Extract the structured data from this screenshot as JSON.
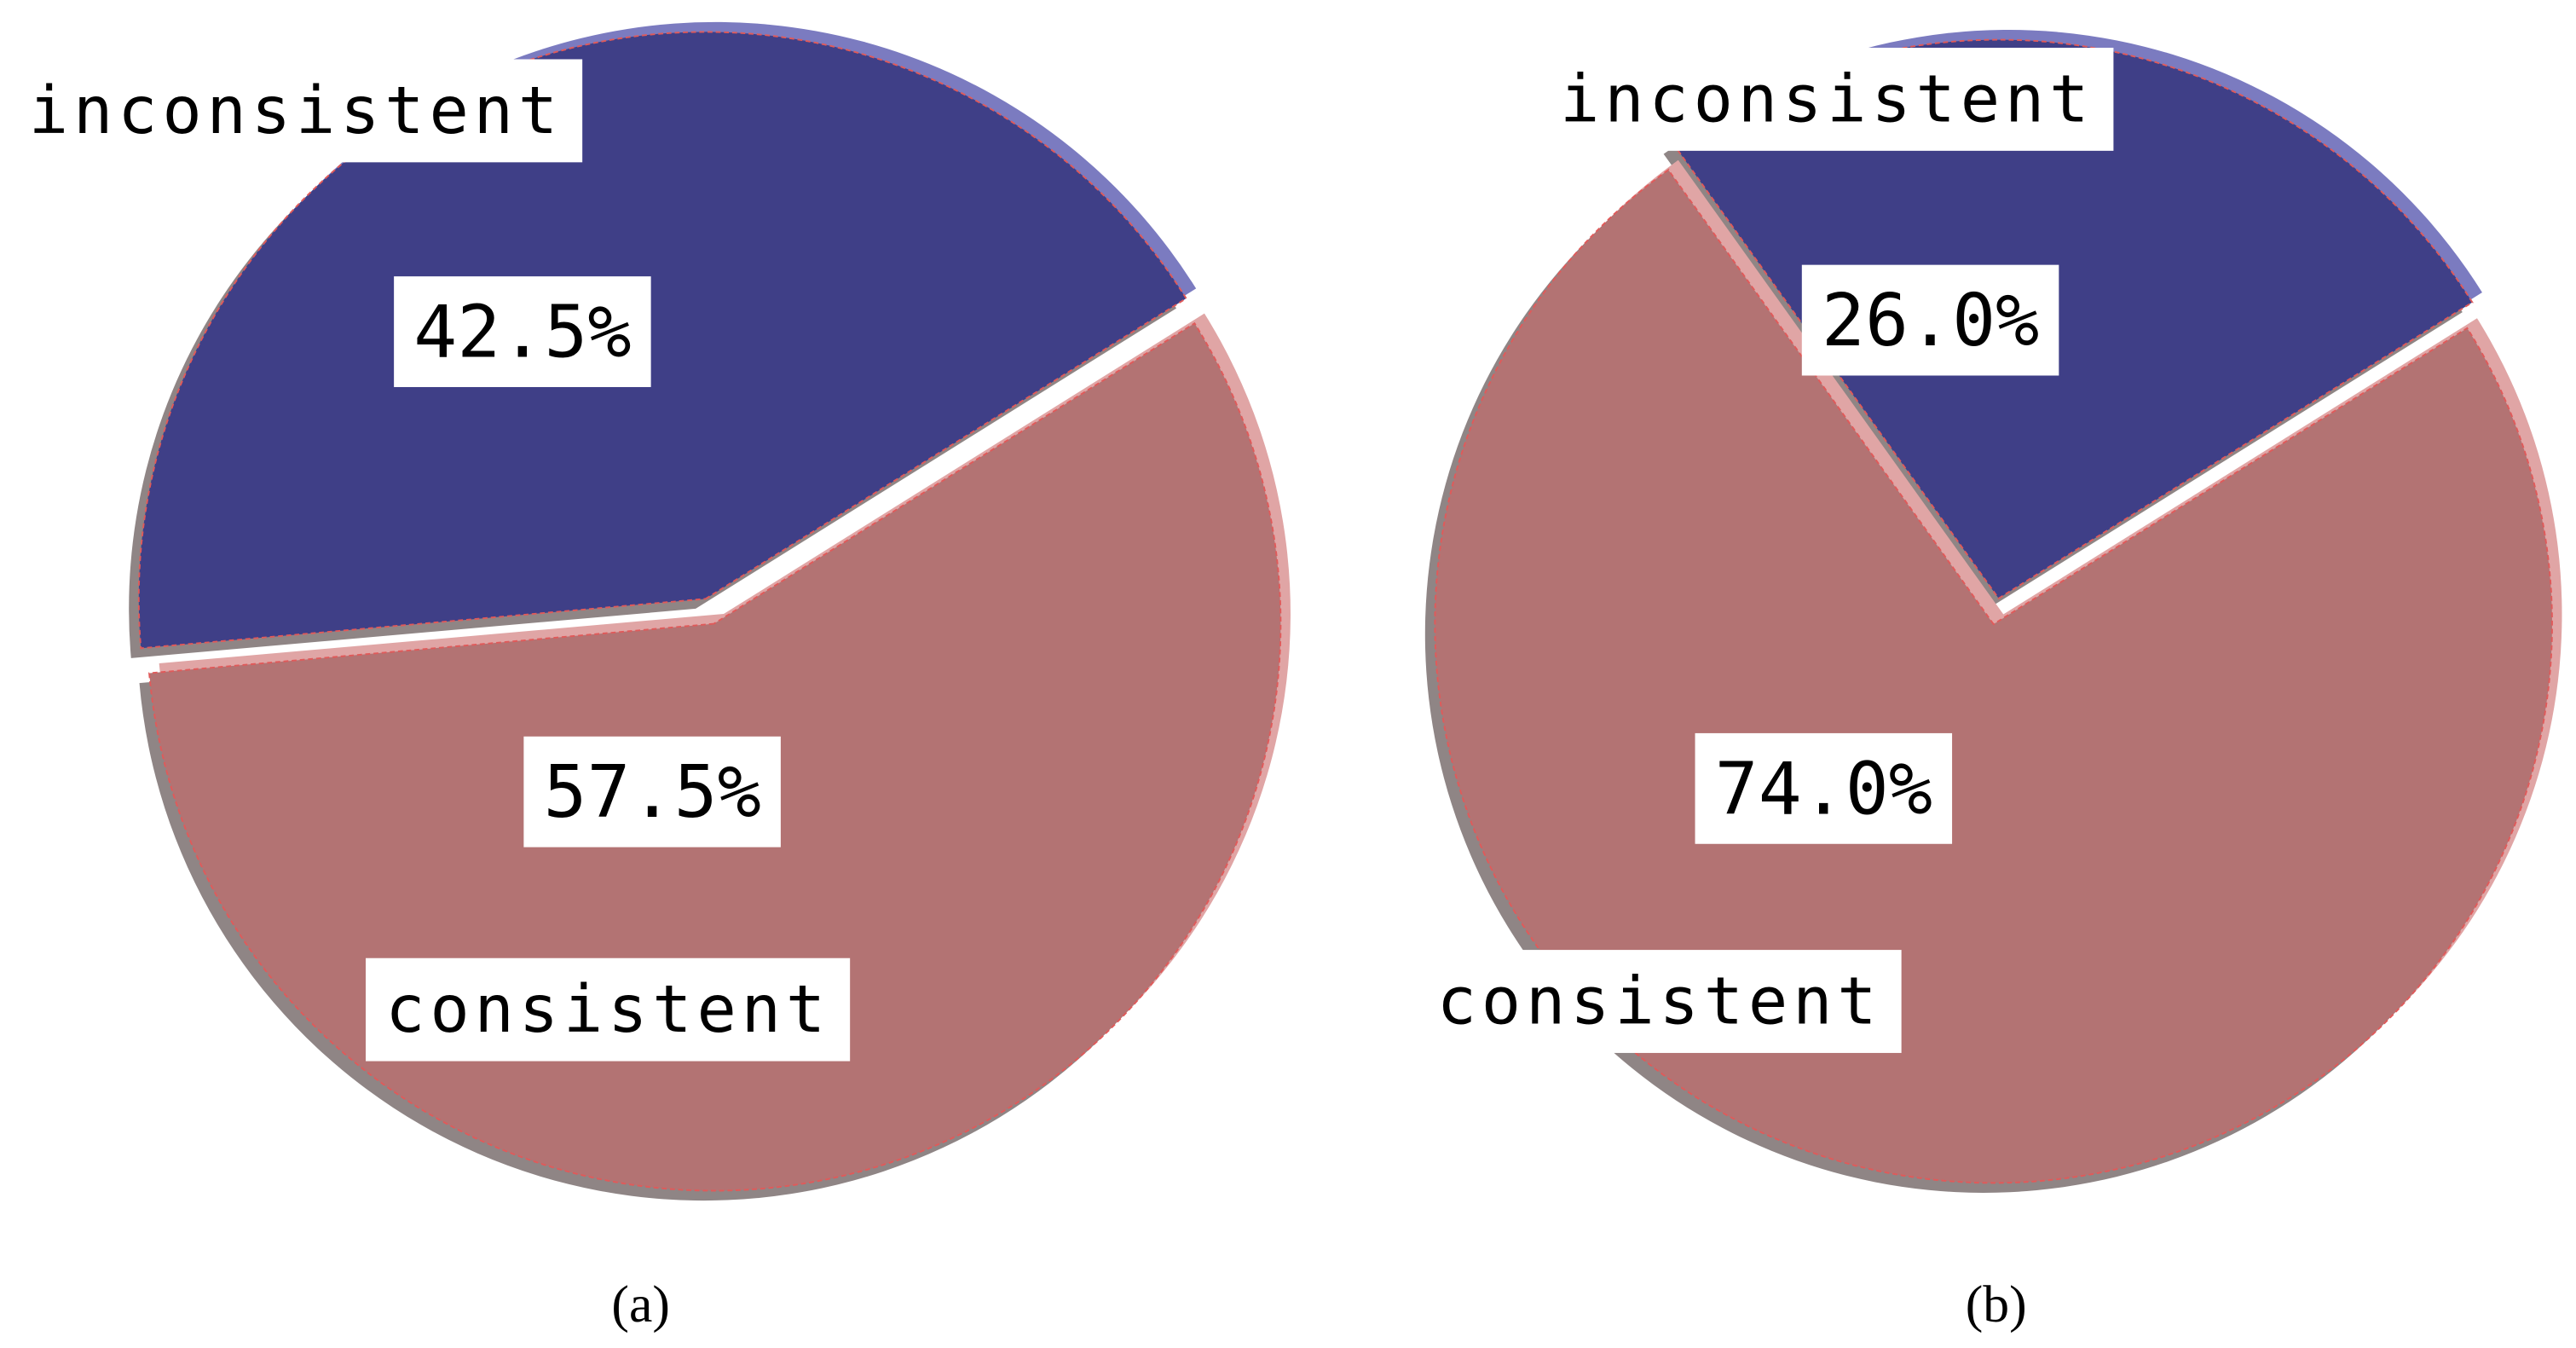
{
  "chart_data": [
    {
      "type": "pie",
      "caption": "(a)",
      "categories": [
        "inconsistent",
        "consistent"
      ],
      "values": [
        42.5,
        57.5
      ],
      "value_labels": [
        "42.5%",
        "57.5%"
      ],
      "colors": [
        "#3f3f87",
        "#b37373"
      ]
    },
    {
      "type": "pie",
      "caption": "(b)",
      "categories": [
        "inconsistent",
        "consistent"
      ],
      "values": [
        26.0,
        74.0
      ],
      "value_labels": [
        "26.0%",
        "74.0%"
      ],
      "colors": [
        "#3f3f87",
        "#b37373"
      ]
    }
  ]
}
